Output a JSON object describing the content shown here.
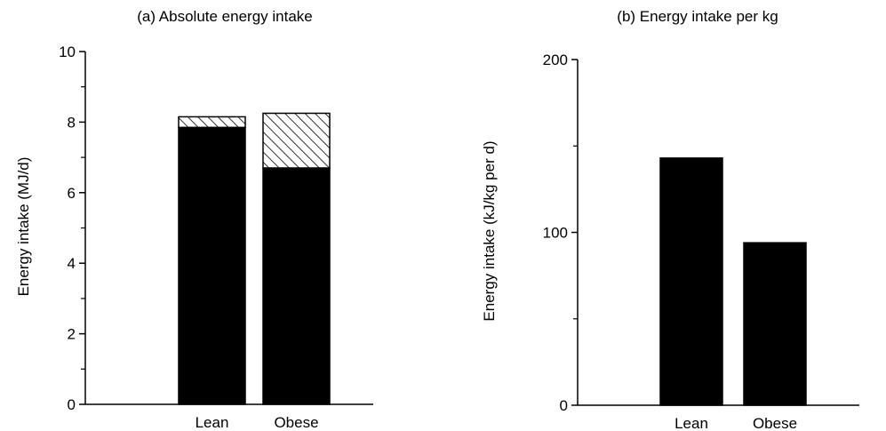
{
  "chart_data": [
    {
      "type": "bar",
      "stacked": true,
      "title": "(a) Absolute energy intake",
      "xlabel": "",
      "ylabel": "Energy intake (MJ/d)",
      "categories": [
        "Lean",
        "Obese"
      ],
      "ylim": [
        0,
        10
      ],
      "yticks": [
        "0",
        "2",
        "4",
        "6",
        "8",
        "10"
      ],
      "minor_ticks": [
        1,
        3,
        5,
        7,
        9
      ],
      "series": [
        {
          "fill": "solid",
          "color": "#000000",
          "values": [
            7.85,
            6.7
          ]
        },
        {
          "fill": "hatched",
          "color": "#000000",
          "values": [
            0.3,
            1.55
          ]
        }
      ],
      "grid": false,
      "legend": "none"
    },
    {
      "type": "bar",
      "title": "(b) Energy intake per kg",
      "xlabel": "",
      "ylabel": "Energy intake (kJ/kg per d)",
      "categories": [
        "Lean",
        "Obese"
      ],
      "ylim": [
        0,
        200
      ],
      "yticks": [
        "0",
        "100",
        "200"
      ],
      "minor_ticks": [
        50,
        150
      ],
      "series": [
        {
          "fill": "solid",
          "color": "#000000",
          "values": [
            143,
            94
          ]
        }
      ],
      "grid": false,
      "legend": "none"
    }
  ]
}
